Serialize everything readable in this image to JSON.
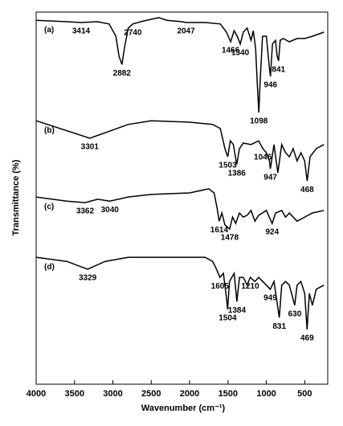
{
  "chart_data": {
    "type": "line",
    "xlabel": "Wavenumber (cm⁻¹)",
    "ylabel": "Transmittance (%)",
    "xlim": [
      4000,
      200
    ],
    "ylim": [
      0,
      100
    ],
    "xticks": [
      4000,
      3500,
      3000,
      2500,
      2000,
      1500,
      1000,
      500
    ],
    "series": [
      {
        "name": "(a)",
        "color": "#000000",
        "x": [
          4000,
          3600,
          3414,
          3200,
          3050,
          2960,
          2920,
          2882,
          2850,
          2800,
          2740,
          2600,
          2400,
          2300,
          2100,
          2047,
          1800,
          1600,
          1520,
          1466,
          1420,
          1380,
          1340,
          1300,
          1250,
          1200,
          1170,
          1140,
          1120,
          1098,
          1080,
          1050,
          1000,
          960,
          946,
          920,
          880,
          860,
          841,
          820,
          780,
          700,
          600,
          500,
          400,
          250
        ],
        "values": [
          97.8,
          97.4,
          97.2,
          97.4,
          96.8,
          93.5,
          88.1,
          85.9,
          90.3,
          95.7,
          96.8,
          97.6,
          98.5,
          97.8,
          97.4,
          97.2,
          97.2,
          96.8,
          94.6,
          92.0,
          95.0,
          93.5,
          91.4,
          94.6,
          95.7,
          92.4,
          95.0,
          90.3,
          81.6,
          73.0,
          81.6,
          93.5,
          93.5,
          84.9,
          82.7,
          91.4,
          92.4,
          88.1,
          86.9,
          92.4,
          92.9,
          92.0,
          92.9,
          92.9,
          93.5,
          94.6
        ],
        "peaks": [
          3414,
          2882,
          2740,
          2047,
          1466,
          1340,
          1098,
          946,
          841
        ]
      },
      {
        "name": "(b)",
        "color": "#000000",
        "x": [
          4000,
          3301,
          2800,
          2500,
          2000,
          1700,
          1600,
          1540,
          1503,
          1470,
          1430,
          1386,
          1350,
          1300,
          1200,
          1100,
          1046,
          1000,
          960,
          947,
          900,
          850,
          800,
          750,
          700,
          650,
          600,
          550,
          500,
          468,
          430,
          350,
          250
        ],
        "values": [
          70.8,
          66.1,
          69.8,
          70.8,
          70.4,
          69.8,
          68.7,
          63.3,
          61.1,
          65.4,
          64.4,
          59.0,
          63.3,
          64.8,
          64.4,
          65.4,
          63.3,
          62.2,
          60.0,
          57.9,
          64.4,
          56.8,
          64.4,
          62.2,
          61.1,
          63.3,
          60.0,
          62.2,
          60.0,
          54.6,
          61.1,
          63.3,
          64.4
        ],
        "peaks": [
          3301,
          1503,
          1386,
          1046,
          947,
          468
        ]
      },
      {
        "name": "(c)",
        "color": "#000000",
        "x": [
          4000,
          3600,
          3362,
          3200,
          3040,
          2800,
          2500,
          2000,
          1750,
          1680,
          1640,
          1614,
          1580,
          1540,
          1478,
          1440,
          1400,
          1350,
          1300,
          1250,
          1200,
          1150,
          1100,
          1050,
          1000,
          924,
          880,
          800,
          750,
          700,
          600,
          500,
          400,
          250
        ],
        "values": [
          50.3,
          49.2,
          48.8,
          49.7,
          49.2,
          50.3,
          51.0,
          51.4,
          52.5,
          51.4,
          47.1,
          43.8,
          46.0,
          42.8,
          41.7,
          44.9,
          43.2,
          46.0,
          44.9,
          45.4,
          46.7,
          43.8,
          45.4,
          46.0,
          46.7,
          43.2,
          46.0,
          46.7,
          44.9,
          46.0,
          43.8,
          44.9,
          46.0,
          46.7
        ],
        "peaks": [
          3362,
          3040,
          1614,
          1478,
          924
        ]
      },
      {
        "name": "(d)",
        "color": "#000000",
        "x": [
          4000,
          3600,
          3329,
          3100,
          2800,
          2500,
          2000,
          1800,
          1700,
          1650,
          1605,
          1560,
          1520,
          1504,
          1480,
          1420,
          1384,
          1350,
          1300,
          1250,
          1210,
          1150,
          1100,
          1000,
          949,
          900,
          831,
          800,
          750,
          700,
          630,
          600,
          550,
          500,
          469,
          440,
          400,
          350,
          250
        ],
        "values": [
          34.1,
          33.0,
          30.9,
          33.0,
          34.1,
          34.1,
          34.1,
          34.1,
          33.0,
          30.9,
          28.7,
          29.8,
          23.3,
          20.1,
          27.6,
          29.8,
          22.2,
          28.7,
          28.7,
          26.6,
          28.7,
          27.6,
          28.7,
          26.6,
          25.5,
          27.6,
          17.9,
          26.6,
          27.6,
          26.6,
          21.2,
          26.6,
          27.6,
          24.4,
          14.7,
          24.4,
          21.2,
          25.5,
          26.6
        ],
        "peaks": [
          3329,
          1605,
          1504,
          1384,
          1210,
          949,
          831,
          630,
          469
        ]
      }
    ]
  }
}
